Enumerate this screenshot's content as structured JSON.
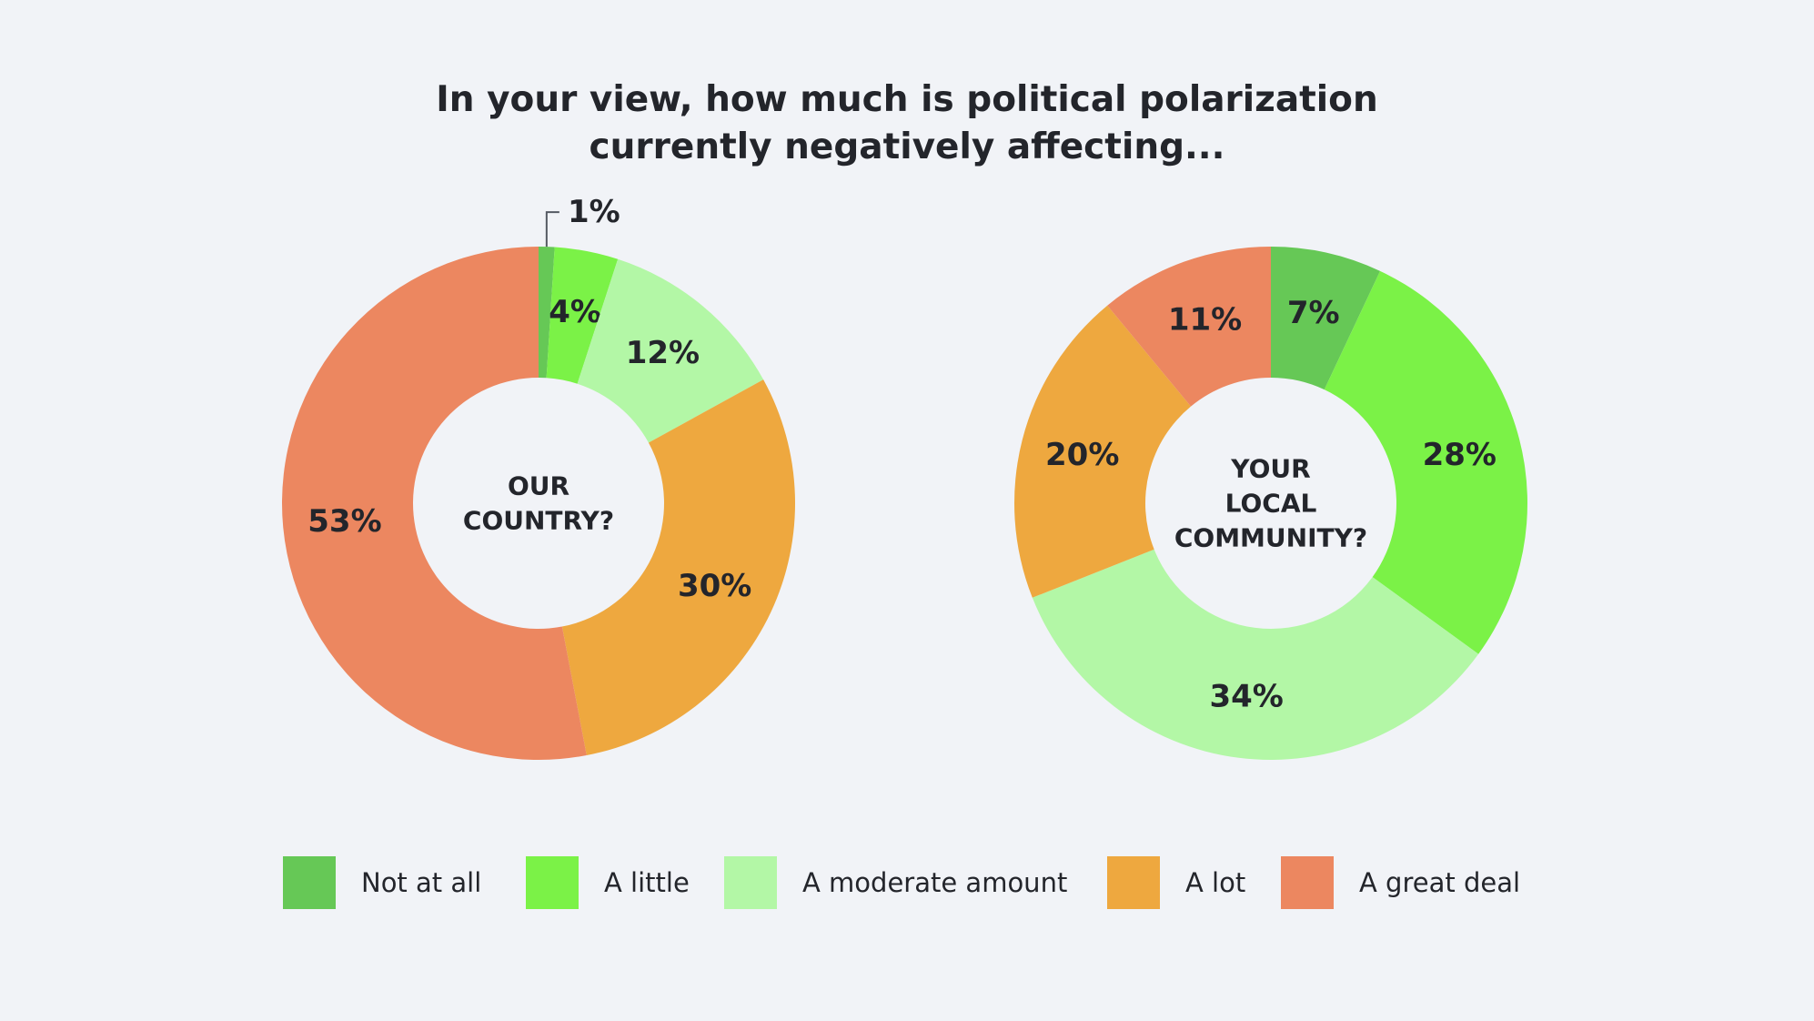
{
  "title": {
    "line1": "In your view, how much is political polarization",
    "line2": "currently negatively affecting..."
  },
  "colors": {
    "background": "#f1f3f7",
    "text": "#23252b",
    "not_at_all": "#66c856",
    "a_little": "#7bf247",
    "a_moderate_amount": "#b3f7a6",
    "a_lot": "#eea83f",
    "a_great_deal": "#ec8760"
  },
  "chart_data": [
    {
      "type": "donut",
      "center_label_lines": [
        "OUR",
        "COUNTRY?"
      ],
      "categories": [
        "Not at all",
        "A little",
        "A moderate amount",
        "A lot",
        "A great deal"
      ],
      "values": [
        1,
        4,
        12,
        30,
        53
      ],
      "labels": [
        "1%",
        "4%",
        "12%",
        "30%",
        "53%"
      ],
      "colors": [
        "#66c856",
        "#7bf247",
        "#b3f7a6",
        "#eea83f",
        "#ec8760"
      ]
    },
    {
      "type": "donut",
      "center_label_lines": [
        "YOUR",
        "LOCAL",
        "COMMUNITY?"
      ],
      "categories": [
        "Not at all",
        "A little",
        "A moderate amount",
        "A lot",
        "A great deal"
      ],
      "values": [
        7,
        28,
        34,
        20,
        11
      ],
      "labels": [
        "7%",
        "28%",
        "34%",
        "20%",
        "11%"
      ],
      "colors": [
        "#66c856",
        "#7bf247",
        "#b3f7a6",
        "#eea83f",
        "#ec8760"
      ]
    }
  ],
  "legend": [
    {
      "label": "Not at all",
      "color": "#66c856"
    },
    {
      "label": "A little",
      "color": "#7bf247"
    },
    {
      "label": "A moderate amount",
      "color": "#b3f7a6"
    },
    {
      "label": "A lot",
      "color": "#eea83f"
    },
    {
      "label": "A great deal",
      "color": "#ec8760"
    }
  ]
}
